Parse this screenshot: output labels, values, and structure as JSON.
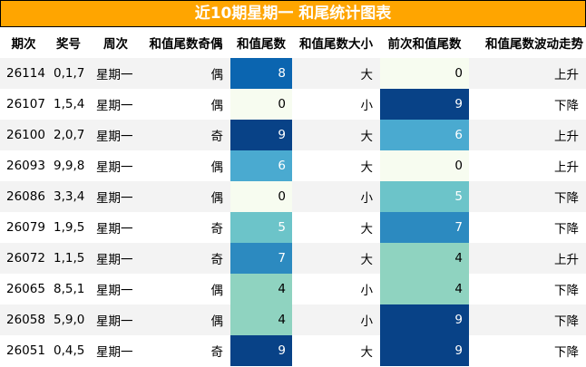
{
  "title": "近10期星期一 和尾统计图表",
  "headers": [
    "期次",
    "奖号",
    "周次",
    "和值尾数奇偶",
    "和值尾数",
    "和值尾数大小",
    "前次和值尾数",
    "和值尾数波动走势"
  ],
  "colors": {
    "title_bg": "#ffa500",
    "row_odd": "#f3f3f3",
    "row_even": "#ffffff",
    "scale": {
      "0": "#f7fcf0",
      "4": "#8fd3c0",
      "5": "#6cc4c9",
      "6": "#4aaad0",
      "7": "#2c8ac0",
      "8": "#0b65b0",
      "9": "#084287"
    }
  },
  "rows": [
    {
      "issue": "26114",
      "numbers": "0,1,7",
      "weekday": "星期一",
      "parity": "偶",
      "tail": 8,
      "size": "大",
      "prev_tail": 0,
      "trend": "上升"
    },
    {
      "issue": "26107",
      "numbers": "1,5,4",
      "weekday": "星期一",
      "parity": "偶",
      "tail": 0,
      "size": "小",
      "prev_tail": 9,
      "trend": "下降"
    },
    {
      "issue": "26100",
      "numbers": "2,0,7",
      "weekday": "星期一",
      "parity": "奇",
      "tail": 9,
      "size": "大",
      "prev_tail": 6,
      "trend": "上升"
    },
    {
      "issue": "26093",
      "numbers": "9,9,8",
      "weekday": "星期一",
      "parity": "偶",
      "tail": 6,
      "size": "大",
      "prev_tail": 0,
      "trend": "上升"
    },
    {
      "issue": "26086",
      "numbers": "3,3,4",
      "weekday": "星期一",
      "parity": "偶",
      "tail": 0,
      "size": "小",
      "prev_tail": 5,
      "trend": "下降"
    },
    {
      "issue": "26079",
      "numbers": "1,9,5",
      "weekday": "星期一",
      "parity": "奇",
      "tail": 5,
      "size": "大",
      "prev_tail": 7,
      "trend": "下降"
    },
    {
      "issue": "26072",
      "numbers": "1,1,5",
      "weekday": "星期一",
      "parity": "奇",
      "tail": 7,
      "size": "大",
      "prev_tail": 4,
      "trend": "上升"
    },
    {
      "issue": "26065",
      "numbers": "8,5,1",
      "weekday": "星期一",
      "parity": "偶",
      "tail": 4,
      "size": "小",
      "prev_tail": 4,
      "trend": "下降"
    },
    {
      "issue": "26058",
      "numbers": "5,9,0",
      "weekday": "星期一",
      "parity": "偶",
      "tail": 4,
      "size": "小",
      "prev_tail": 9,
      "trend": "下降"
    },
    {
      "issue": "26051",
      "numbers": "0,4,5",
      "weekday": "星期一",
      "parity": "奇",
      "tail": 9,
      "size": "大",
      "prev_tail": 9,
      "trend": "下降"
    }
  ]
}
